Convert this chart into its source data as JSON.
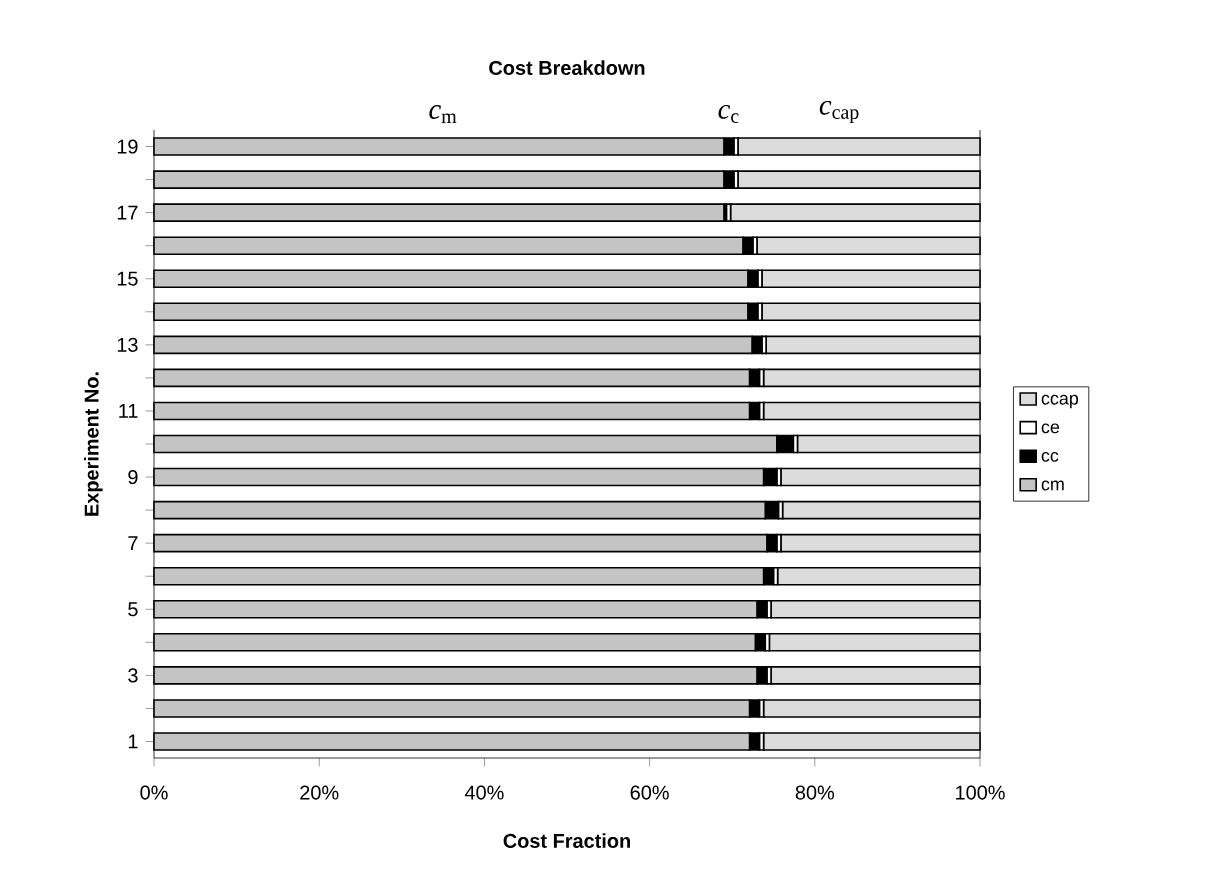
{
  "chart_data": {
    "type": "bar",
    "orientation": "horizontal",
    "stacked": true,
    "title": "Cost Breakdown",
    "xlabel": "Cost Fraction",
    "ylabel": "Experiment No.",
    "categories": [
      "19",
      null,
      "17",
      null,
      "15",
      null,
      "13",
      null,
      "11",
      null,
      "9",
      null,
      "7",
      null,
      "5",
      null,
      "3",
      null,
      "1"
    ],
    "series": [
      {
        "name": "cm",
        "color": "#c4c4c4",
        "values": [
          69,
          69,
          69,
          71.3,
          71.9,
          71.9,
          72.4,
          72.1,
          72.1,
          75.4,
          73.8,
          74,
          74.2,
          73.8,
          73,
          72.8,
          73,
          72.1,
          72.1
        ]
      },
      {
        "name": "cc",
        "color": "#000000",
        "values": [
          1.2,
          1.2,
          0.3,
          1.2,
          1.2,
          1.2,
          1.2,
          1.2,
          1.2,
          2,
          1.6,
          1.6,
          1.2,
          1.2,
          1.2,
          1.2,
          1.2,
          1.2,
          1.2
        ]
      },
      {
        "name": "ce",
        "color": "#ffffff",
        "values": [
          0.5,
          0.5,
          0.5,
          0.5,
          0.5,
          0.5,
          0.5,
          0.5,
          0.5,
          0.5,
          0.5,
          0.5,
          0.5,
          0.5,
          0.5,
          0.5,
          0.5,
          0.5,
          0.5
        ]
      },
      {
        "name": "ccap",
        "color": "#dcdcdc",
        "values": [
          29.3,
          29.3,
          30.2,
          27,
          26.4,
          26.4,
          25.9,
          26.2,
          26.2,
          22.1,
          24.1,
          23.9,
          24.1,
          24.5,
          25.3,
          25.5,
          25.3,
          26.2,
          26.2
        ]
      }
    ],
    "xlim": [
      0,
      100
    ],
    "xticks": [
      {
        "value": 0,
        "label": "0%"
      },
      {
        "value": 20,
        "label": "20%"
      },
      {
        "value": 40,
        "label": "40%"
      },
      {
        "value": 60,
        "label": "60%"
      },
      {
        "value": 80,
        "label": "80%"
      },
      {
        "value": 100,
        "label": "100%"
      }
    ],
    "legend": "right",
    "annotations": [
      "*c*$_{m}$",
      "*c*$_{c}$",
      "*c*$_{cap}$"
    ]
  }
}
